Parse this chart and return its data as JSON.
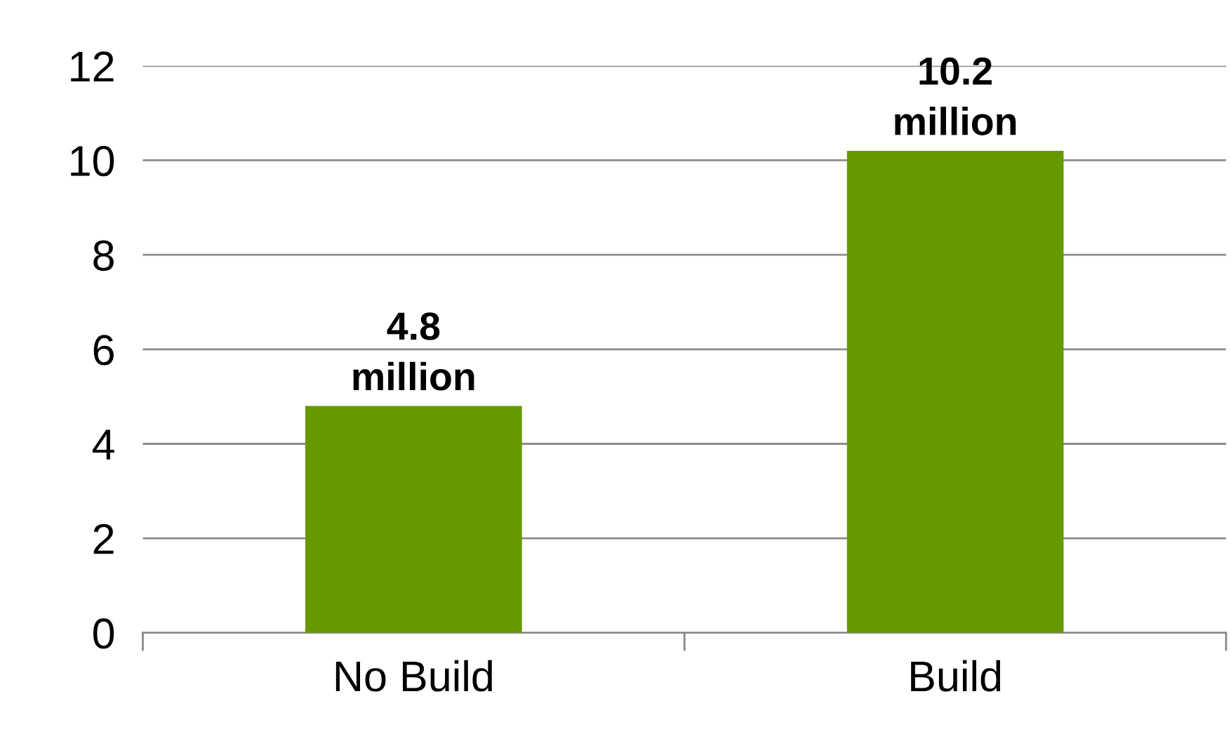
{
  "chart_data": {
    "type": "bar",
    "categories": [
      "No Build",
      "Build"
    ],
    "values": [
      4.8,
      10.2
    ],
    "color": "#669900",
    "annotations": [
      {
        "text": "4.8\nmillion",
        "x": "No Build",
        "y": 4.8
      },
      {
        "text": "10.2\nmillion",
        "x": "Build",
        "y": 10.2
      }
    ],
    "ylim": [
      0,
      12
    ],
    "yticks": [
      0,
      2,
      4,
      6,
      8,
      10,
      12
    ],
    "grid": "y",
    "legend": false
  }
}
